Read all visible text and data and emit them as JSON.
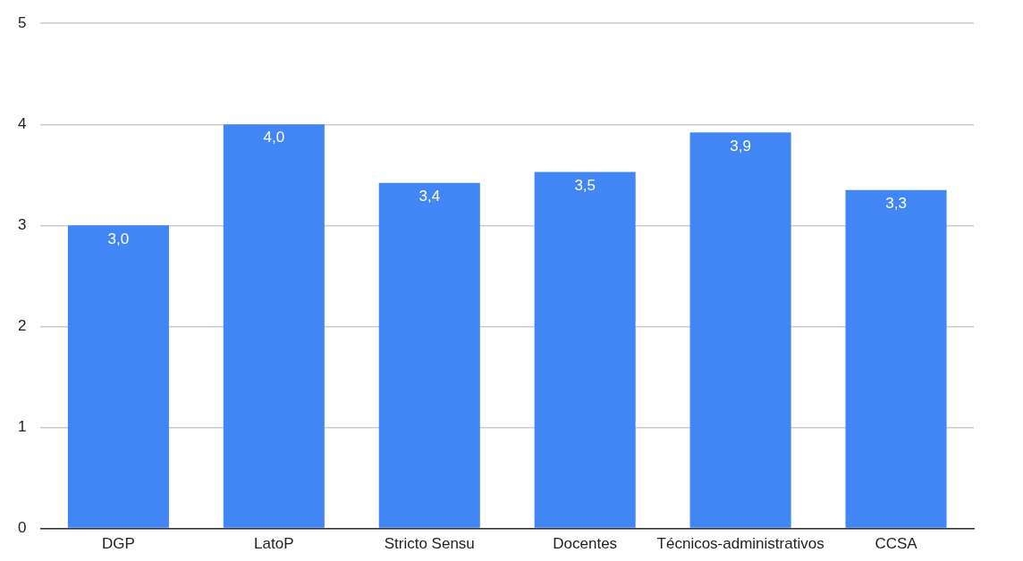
{
  "chart_data": {
    "type": "bar",
    "categories": [
      "DGP",
      "LatoP",
      "Stricto Sensu",
      "Docentes",
      "Técnicos-administrativos",
      "CCSA"
    ],
    "values": [
      3.0,
      4.0,
      3.42,
      3.53,
      3.92,
      3.35
    ],
    "value_labels": [
      "3,0",
      "4,0",
      "3,4",
      "3,5",
      "3,9",
      "3,3"
    ],
    "color": "#4285f4",
    "ylim": [
      0,
      5
    ],
    "yticks": [
      0,
      1,
      2,
      3,
      4,
      5
    ],
    "grid": "y"
  }
}
